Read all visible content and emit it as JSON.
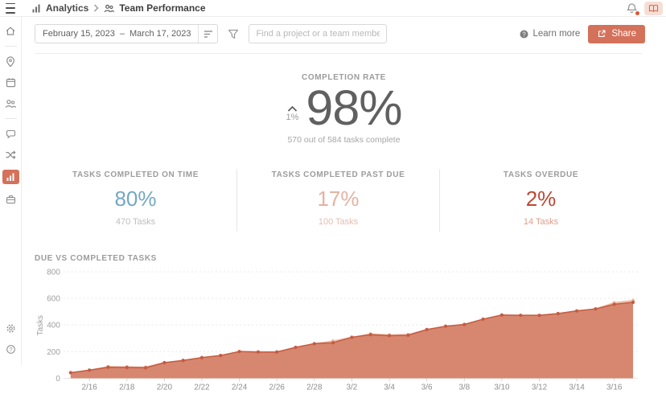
{
  "topbar": {
    "section": "Analytics",
    "page": "Team Performance"
  },
  "toolbar": {
    "date_start": "February 15, 2023",
    "date_separator": "–",
    "date_end": "March 17, 2023",
    "search_placeholder": "Find a project or a team member...",
    "learn_more": "Learn more",
    "share": "Share"
  },
  "completion": {
    "title": "COMPLETION RATE",
    "value": "98%",
    "delta": "1%",
    "subtitle": "570 out of 584 tasks complete"
  },
  "metrics": [
    {
      "label": "TASKS COMPLETED ON TIME",
      "value": "80%",
      "sub": "470 Tasks",
      "value_color": "#74a7c4",
      "sub_color": "#bdbdbd"
    },
    {
      "label": "TASKS COMPLETED PAST DUE",
      "value": "17%",
      "sub": "100 Tasks",
      "value_color": "#e4b2a2",
      "sub_color": "#e3beb1"
    },
    {
      "label": "TASKS OVERDUE",
      "value": "2%",
      "sub": "14 Tasks",
      "value_color": "#bc4733",
      "sub_color": "#dd9e8c"
    }
  ],
  "chart_data": {
    "type": "area",
    "title": "DUE VS COMPLETED TASKS",
    "ylabel": "Tasks",
    "ylim": [
      0,
      800
    ],
    "yticks": [
      0,
      200,
      400,
      600,
      800
    ],
    "grid": "horizontal-dashed",
    "legend": "none",
    "x": [
      "2/15",
      "2/16",
      "2/17",
      "2/18",
      "2/19",
      "2/20",
      "2/21",
      "2/22",
      "2/23",
      "2/24",
      "2/25",
      "2/26",
      "2/27",
      "2/28",
      "3/1",
      "3/2",
      "3/3",
      "3/4",
      "3/5",
      "3/6",
      "3/7",
      "3/8",
      "3/9",
      "3/10",
      "3/11",
      "3/12",
      "3/13",
      "3/14",
      "3/15",
      "3/16",
      "3/17"
    ],
    "x_tick_labels": [
      "2/16",
      "2/18",
      "2/20",
      "2/22",
      "2/24",
      "2/26",
      "2/28",
      "3/2",
      "3/4",
      "3/6",
      "3/8",
      "3/10",
      "3/12",
      "3/14",
      "3/16"
    ],
    "series": [
      {
        "name": "Due",
        "color": "#ecb89f",
        "fill": "#f3d2c0",
        "fill_opacity": 1,
        "dots": true,
        "values": [
          42,
          61,
          88,
          86,
          84,
          117,
          134,
          155,
          171,
          201,
          197,
          197,
          232,
          260,
          280,
          308,
          333,
          326,
          329,
          366,
          391,
          404,
          444,
          475,
          473,
          473,
          486,
          506,
          521,
          568,
          584
        ]
      },
      {
        "name": "Completed",
        "color": "#c45b41",
        "fill": "#d5836b",
        "fill_opacity": 0.95,
        "dots": true,
        "values": [
          42,
          61,
          83,
          81,
          79,
          117,
          134,
          155,
          171,
          201,
          197,
          197,
          232,
          260,
          267,
          308,
          327,
          320,
          323,
          366,
          391,
          404,
          444,
          475,
          473,
          473,
          486,
          506,
          521,
          556,
          570
        ]
      }
    ]
  },
  "sidebar": {
    "icons": [
      "home",
      "location-pin",
      "calendar",
      "team",
      "chat",
      "shuffle",
      "analytics-chart",
      "briefcase",
      "settings-gear",
      "help"
    ],
    "active": "analytics-chart"
  },
  "colors": {
    "accent": "#d4715a",
    "notification_badge": "#e0572e"
  }
}
